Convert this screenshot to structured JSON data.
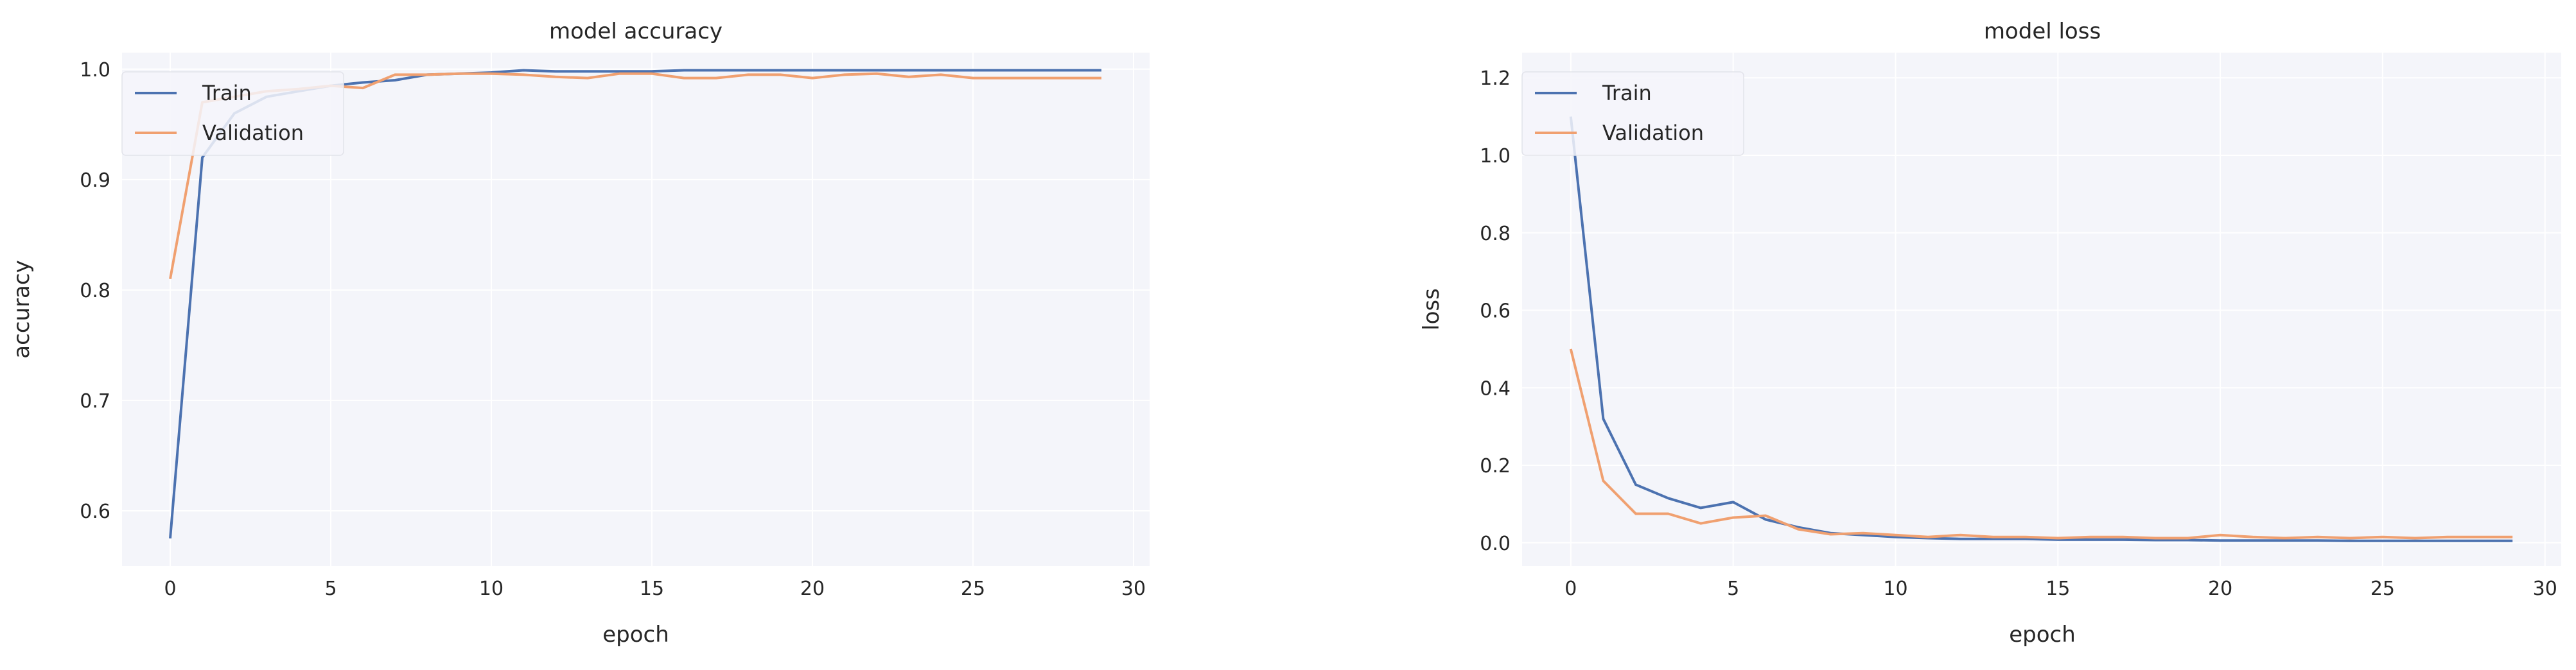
{
  "colors": {
    "train": "#4c72b0",
    "validation": "#f0a070",
    "plot_background": "#f4f5fa",
    "grid": "#ffffff"
  },
  "chart_data": [
    {
      "type": "line",
      "title": "model accuracy",
      "xlabel": "epoch",
      "ylabel": "accuracy",
      "xlim": [
        -1.5,
        30.5
      ],
      "ylim": [
        0.55,
        1.015
      ],
      "xticks": [
        0,
        5,
        10,
        15,
        20,
        25,
        30
      ],
      "xtick_labels": [
        "0",
        "5",
        "10",
        "15",
        "20",
        "25",
        "30"
      ],
      "yticks": [
        0.6,
        0.7,
        0.8,
        0.9,
        1.0
      ],
      "ytick_labels": [
        "0.6",
        "0.7",
        "0.8",
        "0.9",
        "1.0"
      ],
      "grid": true,
      "legend_position": "top-left",
      "series": [
        {
          "name": "Train",
          "color_key": "train",
          "x": [
            0,
            1,
            2,
            3,
            4,
            5,
            6,
            7,
            8,
            9,
            10,
            11,
            12,
            13,
            14,
            15,
            16,
            17,
            18,
            19,
            20,
            21,
            22,
            23,
            24,
            25,
            26,
            27,
            28,
            29
          ],
          "values": [
            0.575,
            0.92,
            0.96,
            0.975,
            0.98,
            0.985,
            0.988,
            0.99,
            0.995,
            0.996,
            0.997,
            0.999,
            0.998,
            0.998,
            0.998,
            0.998,
            0.999,
            0.999,
            0.999,
            0.999,
            0.999,
            0.999,
            0.999,
            0.999,
            0.999,
            0.999,
            0.999,
            0.999,
            0.999,
            0.999
          ]
        },
        {
          "name": "Validation",
          "color_key": "validation",
          "x": [
            0,
            1,
            2,
            3,
            4,
            5,
            6,
            7,
            8,
            9,
            10,
            11,
            12,
            13,
            14,
            15,
            16,
            17,
            18,
            19,
            20,
            21,
            22,
            23,
            24,
            25,
            26,
            27,
            28,
            29
          ],
          "values": [
            0.81,
            0.97,
            0.975,
            0.98,
            0.982,
            0.985,
            0.983,
            0.995,
            0.995,
            0.996,
            0.996,
            0.995,
            0.993,
            0.992,
            0.996,
            0.996,
            0.992,
            0.992,
            0.995,
            0.995,
            0.992,
            0.995,
            0.996,
            0.993,
            0.995,
            0.992,
            0.992,
            0.992,
            0.992,
            0.992
          ]
        }
      ]
    },
    {
      "type": "line",
      "title": "model loss",
      "xlabel": "epoch",
      "ylabel": "loss",
      "xlim": [
        -1.5,
        30.5
      ],
      "ylim": [
        -0.06,
        1.265
      ],
      "xticks": [
        0,
        5,
        10,
        15,
        20,
        25,
        30
      ],
      "xtick_labels": [
        "0",
        "5",
        "10",
        "15",
        "20",
        "25",
        "30"
      ],
      "yticks": [
        0.0,
        0.2,
        0.4,
        0.6,
        0.8,
        1.0,
        1.2
      ],
      "ytick_labels": [
        "0.0",
        "0.2",
        "0.4",
        "0.6",
        "0.8",
        "1.0",
        "1.2"
      ],
      "grid": true,
      "legend_position": "top-left",
      "series": [
        {
          "name": "Train",
          "color_key": "train",
          "x": [
            0,
            1,
            2,
            3,
            4,
            5,
            6,
            7,
            8,
            9,
            10,
            11,
            12,
            13,
            14,
            15,
            16,
            17,
            18,
            19,
            20,
            21,
            22,
            23,
            24,
            25,
            26,
            27,
            28,
            29
          ],
          "values": [
            1.1,
            0.32,
            0.15,
            0.115,
            0.09,
            0.105,
            0.06,
            0.04,
            0.025,
            0.02,
            0.015,
            0.012,
            0.01,
            0.01,
            0.01,
            0.008,
            0.008,
            0.008,
            0.007,
            0.007,
            0.006,
            0.006,
            0.006,
            0.006,
            0.005,
            0.005,
            0.005,
            0.005,
            0.005,
            0.005
          ]
        },
        {
          "name": "Validation",
          "color_key": "validation",
          "x": [
            0,
            1,
            2,
            3,
            4,
            5,
            6,
            7,
            8,
            9,
            10,
            11,
            12,
            13,
            14,
            15,
            16,
            17,
            18,
            19,
            20,
            21,
            22,
            23,
            24,
            25,
            26,
            27,
            28,
            29
          ],
          "values": [
            0.5,
            0.16,
            0.075,
            0.075,
            0.05,
            0.065,
            0.07,
            0.035,
            0.022,
            0.025,
            0.02,
            0.015,
            0.02,
            0.015,
            0.015,
            0.012,
            0.015,
            0.015,
            0.012,
            0.012,
            0.02,
            0.015,
            0.012,
            0.015,
            0.012,
            0.015,
            0.012,
            0.015,
            0.015,
            0.015
          ]
        }
      ]
    }
  ]
}
